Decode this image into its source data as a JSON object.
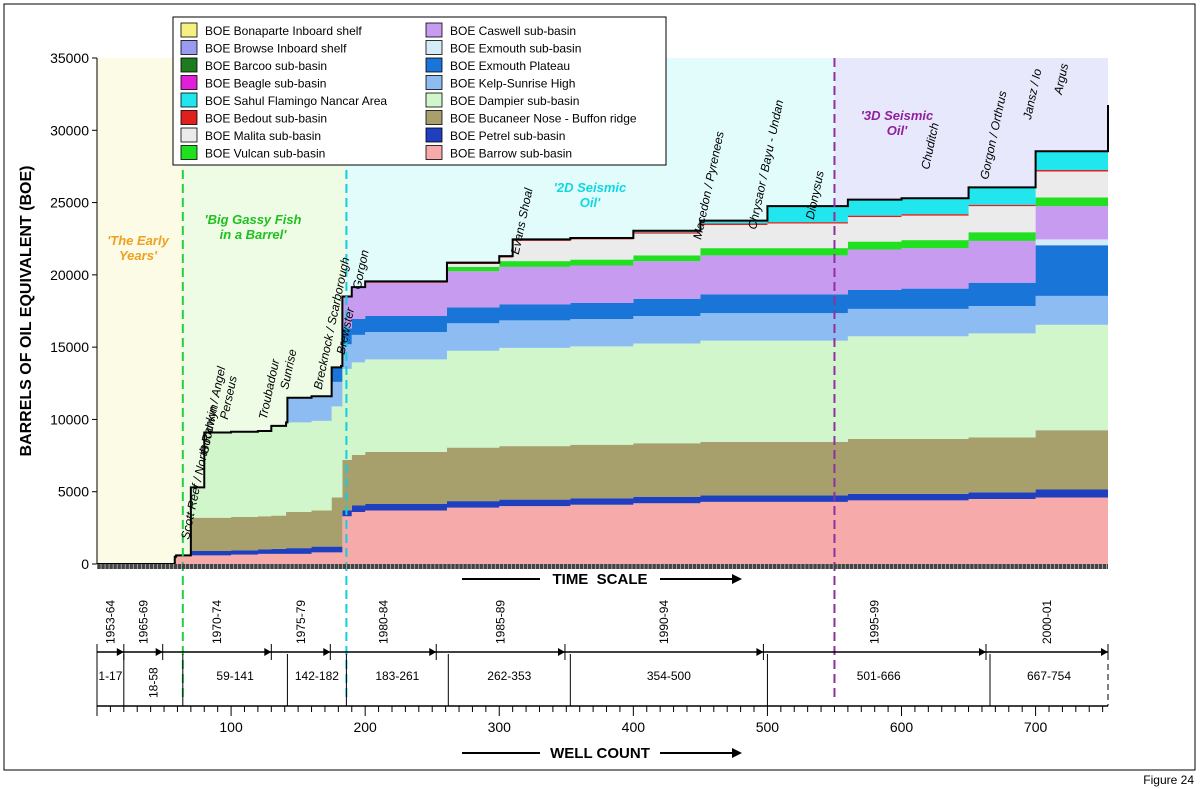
{
  "figure_label": "Figure 24",
  "chart_data": {
    "type": "area",
    "stacked": true,
    "ylabel": "BARRELS OF OIL EQUIVALENT (BOE)",
    "xlabel": "WELL COUNT",
    "time_scale_label": "TIME  SCALE",
    "ylim": [
      0,
      35000
    ],
    "xlim": [
      0,
      754
    ],
    "yticks": [
      0,
      5000,
      10000,
      15000,
      20000,
      25000,
      30000,
      35000
    ],
    "xticks": [
      100,
      200,
      300,
      400,
      500,
      600,
      700
    ],
    "x": [
      0,
      17,
      18,
      58,
      59,
      70,
      80,
      100,
      120,
      130,
      141,
      142,
      160,
      175,
      182,
      183,
      190,
      200,
      261,
      262,
      300,
      310,
      353,
      354,
      400,
      450,
      490,
      500,
      501,
      560,
      600,
      650,
      666,
      667,
      700,
      754
    ],
    "series": [
      {
        "name": "BOE Barrow sub-basin",
        "color": "#f7aaaa",
        "values": [
          0,
          0,
          0,
          500,
          600,
          600,
          600,
          650,
          700,
          700,
          700,
          700,
          800,
          800,
          800,
          3300,
          3600,
          3700,
          3900,
          3900,
          4000,
          4000,
          4100,
          4100,
          4200,
          4300,
          4300,
          4300,
          4300,
          4400,
          4400,
          4500,
          4500,
          4500,
          4600,
          4700
        ]
      },
      {
        "name": "BOE Petrel sub-basin",
        "color": "#1f3fbf",
        "values": [
          0,
          0,
          0,
          0,
          0,
          300,
          300,
          300,
          300,
          350,
          400,
          400,
          400,
          400,
          400,
          400,
          450,
          450,
          450,
          450,
          450,
          450,
          450,
          450,
          450,
          450,
          450,
          450,
          450,
          450,
          450,
          450,
          450,
          450,
          550,
          650
        ]
      },
      {
        "name": "BOE Bucaneer Nose - Buffon ridge",
        "color": "#a7a06c",
        "values": [
          0,
          0,
          0,
          0,
          0,
          2300,
          2300,
          2300,
          2300,
          2300,
          2500,
          2500,
          2500,
          3400,
          3400,
          3500,
          3500,
          3600,
          3700,
          3700,
          3700,
          3700,
          3700,
          3700,
          3700,
          3700,
          3700,
          3700,
          3700,
          3800,
          3800,
          3800,
          3800,
          3800,
          4100,
          4400
        ]
      },
      {
        "name": "BOE Dampier sub-basin",
        "color": "#d2f6cc",
        "values": [
          0,
          0,
          0,
          0,
          0,
          2100,
          5900,
          5900,
          5900,
          6200,
          6200,
          6200,
          6200,
          6300,
          6300,
          6300,
          6400,
          6400,
          6700,
          6700,
          6800,
          6800,
          6800,
          6800,
          6900,
          7000,
          7000,
          7000,
          7000,
          7100,
          7100,
          7200,
          7200,
          7200,
          7300,
          7300
        ]
      },
      {
        "name": "BOE Kelp-Sunrise High",
        "color": "#8cbcf2",
        "values": [
          0,
          0,
          0,
          0,
          0,
          0,
          0,
          0,
          0,
          0,
          0,
          1700,
          1700,
          1700,
          1700,
          1700,
          1900,
          1900,
          1900,
          1900,
          1900,
          1900,
          1900,
          1900,
          1900,
          1900,
          1900,
          1900,
          1900,
          1900,
          1900,
          1900,
          1900,
          1900,
          2000,
          2300
        ]
      },
      {
        "name": "BOE Exmouth Plateau",
        "color": "#1a75d8",
        "values": [
          0,
          0,
          0,
          0,
          0,
          0,
          0,
          0,
          0,
          0,
          0,
          0,
          0,
          1000,
          1100,
          1100,
          1100,
          1100,
          1100,
          1100,
          1100,
          1100,
          1100,
          1100,
          1200,
          1300,
          1300,
          1300,
          1300,
          1300,
          1400,
          1600,
          1600,
          1600,
          3500,
          5800
        ]
      },
      {
        "name": "BOE Exmouth sub-basin",
        "color": "#d4ecfa",
        "values": [
          0,
          0,
          0,
          0,
          0,
          0,
          0,
          0,
          0,
          0,
          0,
          0,
          0,
          0,
          0,
          0,
          0,
          0,
          0,
          0,
          0,
          0,
          0,
          0,
          0,
          0,
          0,
          0,
          0,
          0,
          0,
          0,
          0,
          0,
          400,
          500
        ]
      },
      {
        "name": "BOE Caswell sub-basin",
        "color": "#c79cf0",
        "values": [
          0,
          0,
          0,
          0,
          0,
          0,
          0,
          0,
          0,
          0,
          0,
          0,
          0,
          0,
          0,
          2200,
          2200,
          2300,
          2500,
          2500,
          2600,
          2600,
          2600,
          2600,
          2600,
          2700,
          2700,
          2700,
          2700,
          2800,
          2800,
          2900,
          2900,
          2900,
          2300,
          2300
        ]
      },
      {
        "name": "BOE Vulcan sub-basin",
        "color": "#20e020",
        "values": [
          0,
          0,
          0,
          0,
          0,
          0,
          0,
          0,
          0,
          0,
          0,
          0,
          0,
          0,
          0,
          0,
          0,
          0,
          300,
          300,
          400,
          400,
          400,
          400,
          400,
          500,
          500,
          500,
          500,
          550,
          550,
          600,
          600,
          600,
          600,
          600
        ]
      },
      {
        "name": "BOE Malita sub-basin",
        "color": "#ebebeb",
        "values": [
          0,
          0,
          0,
          0,
          0,
          0,
          0,
          0,
          0,
          0,
          0,
          0,
          0,
          0,
          0,
          0,
          0,
          0,
          200,
          200,
          250,
          1400,
          1400,
          1400,
          1500,
          1600,
          1600,
          1700,
          1700,
          1700,
          1700,
          1800,
          1800,
          1800,
          1800,
          1800
        ]
      },
      {
        "name": "BOE Bedout sub-basin",
        "color": "#e0201e",
        "values": [
          0,
          0,
          0,
          0,
          0,
          0,
          0,
          0,
          0,
          0,
          0,
          0,
          0,
          0,
          0,
          0,
          0,
          100,
          100,
          100,
          100,
          100,
          100,
          100,
          100,
          100,
          100,
          100,
          100,
          100,
          100,
          100,
          100,
          100,
          100,
          100
        ]
      },
      {
        "name": "BOE Sahul Flamingo Nancar Area",
        "color": "#22e6ee",
        "values": [
          0,
          0,
          0,
          0,
          0,
          0,
          0,
          0,
          0,
          0,
          0,
          0,
          0,
          0,
          0,
          0,
          0,
          0,
          0,
          0,
          0,
          0,
          0,
          0,
          100,
          200,
          200,
          1100,
          1100,
          1100,
          1100,
          1200,
          1200,
          1200,
          1300,
          1300
        ]
      },
      {
        "name": "BOE Beagle sub-basin",
        "color": "#e020d8",
        "values": [
          0,
          0,
          0,
          0,
          0,
          0,
          0,
          0,
          0,
          0,
          0,
          0,
          0,
          0,
          0,
          0,
          0,
          0,
          0,
          0,
          0,
          0,
          0,
          0,
          0,
          0,
          0,
          0,
          0,
          0,
          0,
          0,
          0,
          0,
          0,
          0
        ]
      },
      {
        "name": "BOE Barcoo sub-basin",
        "color": "#1e7a1e",
        "values": [
          0,
          0,
          0,
          0,
          0,
          0,
          0,
          0,
          0,
          0,
          0,
          0,
          0,
          0,
          0,
          0,
          0,
          0,
          0,
          0,
          0,
          0,
          0,
          0,
          0,
          0,
          0,
          0,
          0,
          0,
          0,
          0,
          0,
          0,
          0,
          0
        ]
      },
      {
        "name": "BOE Browse Inboard shelf",
        "color": "#9a9af0",
        "values": [
          0,
          0,
          0,
          0,
          0,
          0,
          0,
          0,
          0,
          0,
          0,
          0,
          0,
          0,
          0,
          0,
          0,
          0,
          0,
          0,
          0,
          0,
          0,
          0,
          0,
          0,
          0,
          0,
          0,
          0,
          0,
          0,
          0,
          0,
          0,
          0
        ]
      },
      {
        "name": "BOE Bonaparte Inboard shelf",
        "color": "#f6f082",
        "values": [
          0,
          0,
          0,
          0,
          0,
          0,
          0,
          0,
          0,
          0,
          0,
          0,
          0,
          0,
          0,
          0,
          0,
          0,
          0,
          0,
          0,
          0,
          0,
          0,
          0,
          0,
          0,
          0,
          0,
          0,
          0,
          0,
          0,
          0,
          0,
          0
        ]
      }
    ],
    "legend_order": [
      "BOE Bonaparte Inboard shelf",
      "BOE Browse Inboard shelf",
      "BOE Barcoo sub-basin",
      "BOE Beagle sub-basin",
      "BOE Sahul Flamingo Nancar Area",
      "BOE Bedout sub-basin",
      "BOE Malita sub-basin",
      "BOE Vulcan sub-basin",
      "BOE Caswell sub-basin",
      "BOE Exmouth sub-basin",
      "BOE Exmouth Plateau",
      "BOE Kelp-Sunrise High",
      "BOE Dampier sub-basin",
      "BOE Bucaneer Nose - Buffon ridge",
      "BOE Petrel sub-basin",
      "BOE Barrow sub-basin"
    ],
    "legend_position": "top-left",
    "eras": [
      {
        "label": "'The Early Years'",
        "x_start": 0,
        "x_end": 64,
        "fill": "#fcfce6",
        "text_color": "#f0a020",
        "line_color": ""
      },
      {
        "label": "'Big Gassy Fish in a Barrel'",
        "x_start": 64,
        "x_end": 186,
        "fill": "#eefce6",
        "text_color": "#20c020",
        "line_color": "#20d040"
      },
      {
        "label": "'2D Seismic Oil'",
        "x_start": 186,
        "x_end": 550,
        "fill": "#e2fcfc",
        "text_color": "#10d8e0",
        "line_color": "#10d0e0"
      },
      {
        "label": "'3D Seismic Oil'",
        "x_start": 550,
        "x_end": 754,
        "fill": "#e8e8fc",
        "text_color": "#9020a0",
        "line_color": "#9030a0"
      }
    ],
    "field_annotations": [
      {
        "label": "Scott Reef / North Rankin / Angel",
        "x": 64
      },
      {
        "label": "Goodwyn",
        "x": 78
      },
      {
        "label": "Perseus",
        "x": 93
      },
      {
        "label": "Troubadour",
        "x": 122
      },
      {
        "label": "Sunrise",
        "x": 138
      },
      {
        "label": "Brecknock / Scarborough",
        "x": 163
      },
      {
        "label": "Brewster",
        "x": 180
      },
      {
        "label": "Gorgon",
        "x": 192
      },
      {
        "label": "Evans Shoal",
        "x": 310
      },
      {
        "label": "Macedon / Pyrenees",
        "x": 446
      },
      {
        "label": "Chrysaor / Bayu - Undan",
        "x": 487
      },
      {
        "label": "Dionysus",
        "x": 530
      },
      {
        "label": "Chuditch",
        "x": 616
      },
      {
        "label": "Gorgon / Orthrus",
        "x": 660
      },
      {
        "label": "Jansz / Io",
        "x": 692
      },
      {
        "label": "Argus",
        "x": 715
      }
    ],
    "time_periods": [
      {
        "label": "1953-64",
        "x_start": 0,
        "x_end": 20
      },
      {
        "label": "1965-69",
        "x_start": 20,
        "x_end": 49
      },
      {
        "label": "1970-74",
        "x_start": 49,
        "x_end": 130
      },
      {
        "label": "1975-79",
        "x_start": 130,
        "x_end": 174
      },
      {
        "label": "1980-84",
        "x_start": 174,
        "x_end": 253
      },
      {
        "label": "1985-89",
        "x_start": 253,
        "x_end": 349
      },
      {
        "label": "1990-94",
        "x_start": 349,
        "x_end": 497
      },
      {
        "label": "1995-99",
        "x_start": 497,
        "x_end": 663
      },
      {
        "label": "2000-01",
        "x_start": 663,
        "x_end": 754
      }
    ],
    "well_ranges": [
      {
        "label": "1-17",
        "x_start": 0,
        "x_end": 20
      },
      {
        "label": "18-58",
        "x_start": 20,
        "x_end": 64
      },
      {
        "label": "59-141",
        "x_start": 64,
        "x_end": 142
      },
      {
        "label": "142-182",
        "x_start": 142,
        "x_end": 186
      },
      {
        "label": "183-261",
        "x_start": 186,
        "x_end": 262
      },
      {
        "label": "262-353",
        "x_start": 262,
        "x_end": 353
      },
      {
        "label": "354-500",
        "x_start": 353,
        "x_end": 500
      },
      {
        "label": "501-666",
        "x_start": 500,
        "x_end": 666
      },
      {
        "label": "667-754",
        "x_start": 666,
        "x_end": 754
      }
    ]
  }
}
